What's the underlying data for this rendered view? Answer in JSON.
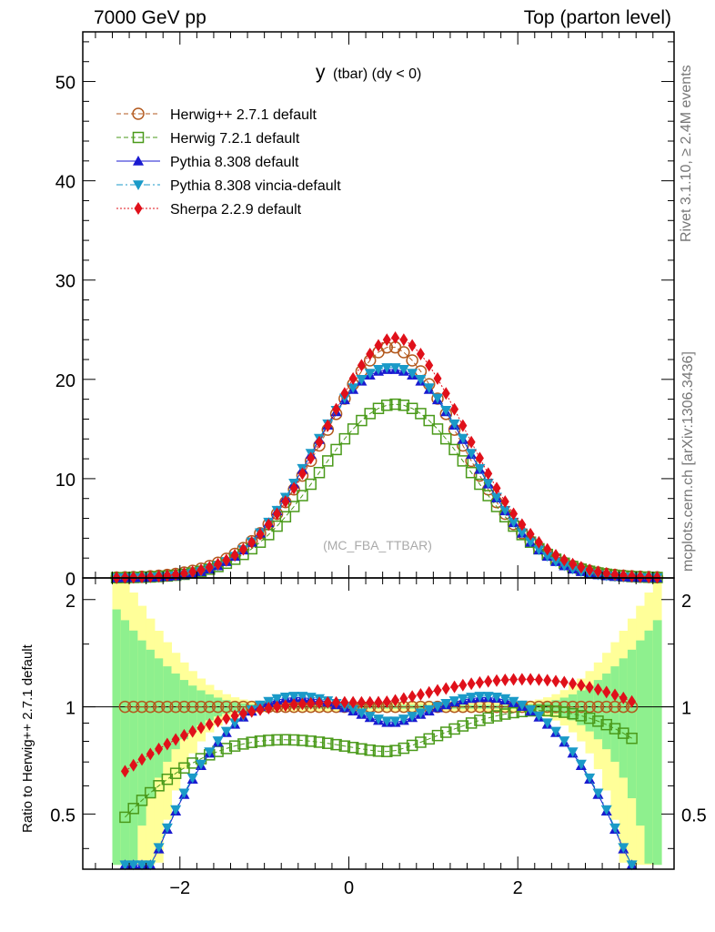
{
  "header": {
    "left": "7000 GeV pp",
    "right": "Top (parton level)"
  },
  "side": {
    "rivet": "Rivet 3.1.10, ≥ 2.4M events",
    "mcplots": "mcplots.cern.ch [arXiv:1306.3436]"
  },
  "ratio_ylabel": "Ratio to Herwig++ 2.7.1 default",
  "chart_data": [
    {
      "type": "line",
      "title": "y",
      "title_suffix": "(tbar) (dy < 0)",
      "watermark": "(MC_FBA_TTBAR)",
      "xlim": [
        -3.15,
        3.85
      ],
      "ylim": [
        0,
        55
      ],
      "y_ticks": [
        "0",
        "10",
        "20",
        "30",
        "40",
        "50"
      ],
      "legend_position": "top-left",
      "series": [
        {
          "name": "Herwig++ 2.7.1 default",
          "color": "#b35a1f",
          "marker": "open-circle",
          "line": "dashed",
          "peak": 23.3,
          "mu": 0.5,
          "sigma": 0.8,
          "tail": 0.9
        },
        {
          "name": "Herwig 7.2.1 default",
          "color": "#4a9a1a",
          "marker": "open-square",
          "line": "dashed",
          "peak": 17.5,
          "mu": 0.55,
          "sigma": 0.9,
          "tail": 1.0
        },
        {
          "name": "Pythia 8.308 default",
          "color": "#1a1ad0",
          "marker": "triangle-up",
          "line": "solid",
          "peak": 21.0,
          "mu": 0.5,
          "sigma": 0.93,
          "tail": 1.1
        },
        {
          "name": "Pythia 8.308 vincia-default",
          "color": "#1a9ac8",
          "marker": "triangle-down",
          "line": "dashdot",
          "peak": 21.2,
          "mu": 0.5,
          "sigma": 0.93,
          "tail": 1.1
        },
        {
          "name": "Sherpa 2.2.9 default",
          "color": "#e0101a",
          "marker": "diamond",
          "line": "dotted",
          "peak": 24.2,
          "mu": 0.55,
          "sigma": 0.84,
          "tail": 0.95
        }
      ]
    },
    {
      "type": "line",
      "ylabel": "Ratio to Herwig++ 2.7.1 default",
      "xlim": [
        -3.15,
        3.85
      ],
      "ylim": [
        0.35,
        2.3
      ],
      "y_scale": "log",
      "x_ticks": [
        "−2",
        "0",
        "2"
      ],
      "y_ticks": [
        "0.5",
        "1",
        "2"
      ],
      "reference": 1.0,
      "band_colors": {
        "inner": "#8ef08e",
        "outer": "#ffff99"
      }
    }
  ]
}
